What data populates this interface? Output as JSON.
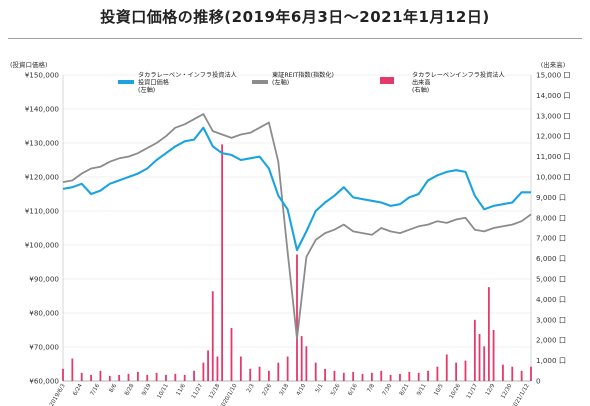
{
  "title": "投資口価格の推移(2019年6月3日～2021年1月12日)",
  "chart_data": {
    "type": "line",
    "title": "投資口価格の推移(2019年6月3日～2021年1月12日)",
    "left_axis": {
      "label": "(投資口価格)",
      "ylim": [
        60000,
        150000
      ],
      "ticks": [
        "¥60,000",
        "¥70,000",
        "¥80,000",
        "¥90,000",
        "¥100,000",
        "¥110,000",
        "¥120,000",
        "¥130,000",
        "¥140,000",
        "¥150,000"
      ]
    },
    "right_axis": {
      "label": "(出来高)",
      "ylim": [
        0,
        15000
      ],
      "ticks": [
        "0",
        "1,000 口",
        "2,000 口",
        "3,000 口",
        "4,000 口",
        "5,000 口",
        "6,000 口",
        "7,000 口",
        "8,000 口",
        "9,000 口",
        "10,000 口",
        "11,000 口",
        "12,000 口",
        "13,000 口",
        "14,000 口",
        "15,000 口"
      ]
    },
    "x_ticks": [
      "2019/6/3",
      "6/24",
      "7/16",
      "8/6",
      "8/28",
      "9/19",
      "10/11",
      "11/6",
      "11/27",
      "12/18",
      "2020/1/10",
      "2/3",
      "2/26",
      "3/18",
      "4/10",
      "5/1",
      "5/26",
      "6/16",
      "7/8",
      "7/30",
      "8/21",
      "9/11",
      "10/5",
      "10/26",
      "11/17",
      "12/9",
      "12/30",
      "2021/1/12"
    ],
    "legend": [
      {
        "text": [
          "タカラレーベン・インフラ投資法人",
          "投資口価格",
          "(左軸)"
        ],
        "color": "#1aa3e0"
      },
      {
        "text": [
          "東証REIT指数(指数化)",
          "(左軸)"
        ],
        "color": "#8c8c8c"
      },
      {
        "text": [
          "タカラレーベンインフラ投資法人",
          "出来高",
          "(右軸)"
        ],
        "color": "#e4396b"
      }
    ],
    "grid": true,
    "series": [
      {
        "name": "タカラレーベン・インフラ投資法人 投資口価格",
        "axis": "left",
        "color": "#1aa3e0",
        "x": [
          0,
          2,
          4,
          6,
          8,
          10,
          12,
          14,
          16,
          18,
          20,
          22,
          24,
          26,
          28,
          30,
          32,
          34,
          36,
          38,
          40,
          42,
          44,
          46,
          48,
          50,
          52,
          54,
          56,
          58,
          60,
          62,
          64,
          66,
          68,
          70,
          72,
          74,
          76,
          78,
          80,
          82,
          84,
          86,
          88,
          90,
          92,
          94,
          96,
          98,
          100
        ],
        "values": [
          116500,
          117000,
          118000,
          115000,
          116000,
          118000,
          119000,
          120000,
          121000,
          122500,
          125000,
          127000,
          129000,
          130500,
          131000,
          134500,
          129000,
          127000,
          126500,
          125000,
          125500,
          126000,
          122500,
          114500,
          110500,
          98500,
          104000,
          110000,
          112500,
          114500,
          117000,
          114000,
          113500,
          113000,
          112500,
          111500,
          112000,
          114000,
          115000,
          119000,
          120500,
          121500,
          122000,
          121500,
          114500,
          110500,
          111500,
          112000,
          112500,
          115500,
          115500
        ]
      },
      {
        "name": "東証REIT指数(指数化)",
        "axis": "left",
        "color": "#8c8c8c",
        "x": [
          0,
          2,
          4,
          6,
          8,
          10,
          12,
          14,
          16,
          18,
          20,
          22,
          24,
          26,
          28,
          30,
          32,
          34,
          36,
          38,
          40,
          42,
          44,
          46,
          48,
          50,
          52,
          54,
          56,
          58,
          60,
          62,
          64,
          66,
          68,
          70,
          72,
          74,
          76,
          78,
          80,
          82,
          84,
          86,
          88,
          90,
          92,
          94,
          96,
          98,
          100
        ],
        "values": [
          118500,
          119000,
          121000,
          122500,
          123000,
          124500,
          125500,
          126000,
          127000,
          128500,
          130000,
          132000,
          134500,
          135500,
          137000,
          138500,
          133500,
          132500,
          131500,
          132500,
          133000,
          134500,
          136000,
          124500,
          98000,
          72500,
          96500,
          101500,
          103500,
          104500,
          106000,
          104000,
          103500,
          103000,
          105000,
          104000,
          103500,
          104500,
          105500,
          106000,
          107000,
          106500,
          107500,
          108000,
          104500,
          104000,
          105000,
          105500,
          106000,
          107000,
          109000
        ]
      },
      {
        "name": "タカラレーベンインフラ投資法人 出来高",
        "axis": "right",
        "type": "bar",
        "color": "#e4396b",
        "x": [
          0,
          2,
          4,
          6,
          8,
          10,
          12,
          14,
          16,
          18,
          20,
          22,
          24,
          26,
          28,
          30,
          31,
          32,
          33,
          34,
          36,
          38,
          40,
          42,
          44,
          46,
          48,
          50,
          51,
          52,
          54,
          56,
          58,
          60,
          62,
          64,
          66,
          68,
          70,
          72,
          74,
          76,
          78,
          80,
          82,
          84,
          86,
          88,
          89,
          90,
          91,
          92,
          94,
          96,
          98,
          100
        ],
        "values": [
          600,
          1100,
          400,
          300,
          500,
          250,
          300,
          350,
          450,
          300,
          400,
          300,
          350,
          300,
          500,
          900,
          1500,
          4400,
          1200,
          11600,
          2600,
          1200,
          600,
          700,
          500,
          900,
          1200,
          6200,
          2200,
          1700,
          900,
          600,
          500,
          400,
          450,
          350,
          400,
          500,
          300,
          350,
          450,
          400,
          500,
          700,
          1300,
          900,
          1000,
          3000,
          2300,
          1700,
          4600,
          2500,
          800,
          700,
          500,
          700
        ]
      }
    ]
  }
}
